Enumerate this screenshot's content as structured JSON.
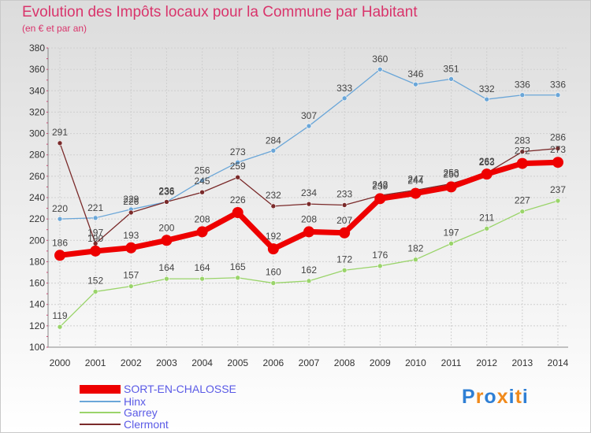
{
  "title": "Evolution des Impôts locaux pour la Commune par Habitant",
  "subtitle": "(en € et par an)",
  "logo": {
    "letters": [
      "P",
      "r",
      "o",
      "x",
      "i",
      "t",
      "i"
    ],
    "colors": [
      "#2f7fd4",
      "#f08a1c",
      "#2f7fd4",
      "#f08a1c",
      "#2f7fd4",
      "#f08a1c",
      "#2f7fd4"
    ]
  },
  "chart_data": {
    "type": "line",
    "title": "Evolution des Impôts locaux pour la Commune par Habitant",
    "subtitle": "(en € et par an)",
    "x": [
      "2000",
      "2001",
      "2002",
      "2003",
      "2004",
      "2005",
      "2006",
      "2007",
      "2008",
      "2009",
      "2010",
      "2011",
      "2012",
      "2013",
      "2014"
    ],
    "yticks": [
      100,
      120,
      140,
      160,
      180,
      200,
      220,
      240,
      260,
      280,
      300,
      320,
      340,
      360,
      380
    ],
    "ylim": [
      100,
      380
    ],
    "grid": true,
    "legend_position": "bottom-left",
    "series": [
      {
        "name": "SORT-EN-CHALOSSE",
        "color": "#ee0000",
        "values": [
          186,
          190,
          193,
          200,
          208,
          226,
          192,
          208,
          207,
          239,
          244,
          250,
          262,
          272,
          273
        ],
        "labels": [
          "186",
          "190",
          "193",
          "200",
          "208",
          "226",
          "192",
          "208",
          "207",
          "239",
          "244",
          "250",
          "262",
          "272",
          "273"
        ]
      },
      {
        "name": "Hinx",
        "color": "#6aa6d8",
        "values": [
          220,
          221,
          229,
          236,
          256,
          273,
          284,
          307,
          333,
          360,
          346,
          351,
          332,
          336,
          336
        ],
        "labels": [
          "220",
          "221",
          "229",
          "236",
          "256",
          "273",
          "284",
          "307",
          "333",
          "360",
          "346",
          "351",
          "332",
          "336",
          "336"
        ]
      },
      {
        "name": "Garrey",
        "color": "#9ad46a",
        "values": [
          119,
          152,
          157,
          164,
          164,
          165,
          160,
          162,
          172,
          176,
          182,
          197,
          211,
          227,
          237
        ],
        "labels": [
          "119",
          "152",
          "157",
          "164",
          "164",
          "165",
          "160",
          "162",
          "172",
          "176",
          "182",
          "197",
          "211",
          "227",
          "237"
        ]
      },
      {
        "name": "Clermont",
        "color": "#7a2a2a",
        "values": [
          291,
          197,
          226,
          236,
          245,
          259,
          232,
          234,
          233,
          242,
          247,
          253,
          263,
          283,
          286
        ],
        "labels": [
          "291",
          "197",
          "226",
          "236",
          "245",
          "259",
          "232",
          "234",
          "233",
          "242",
          "247",
          "253",
          "263",
          "283",
          "286"
        ]
      }
    ]
  }
}
